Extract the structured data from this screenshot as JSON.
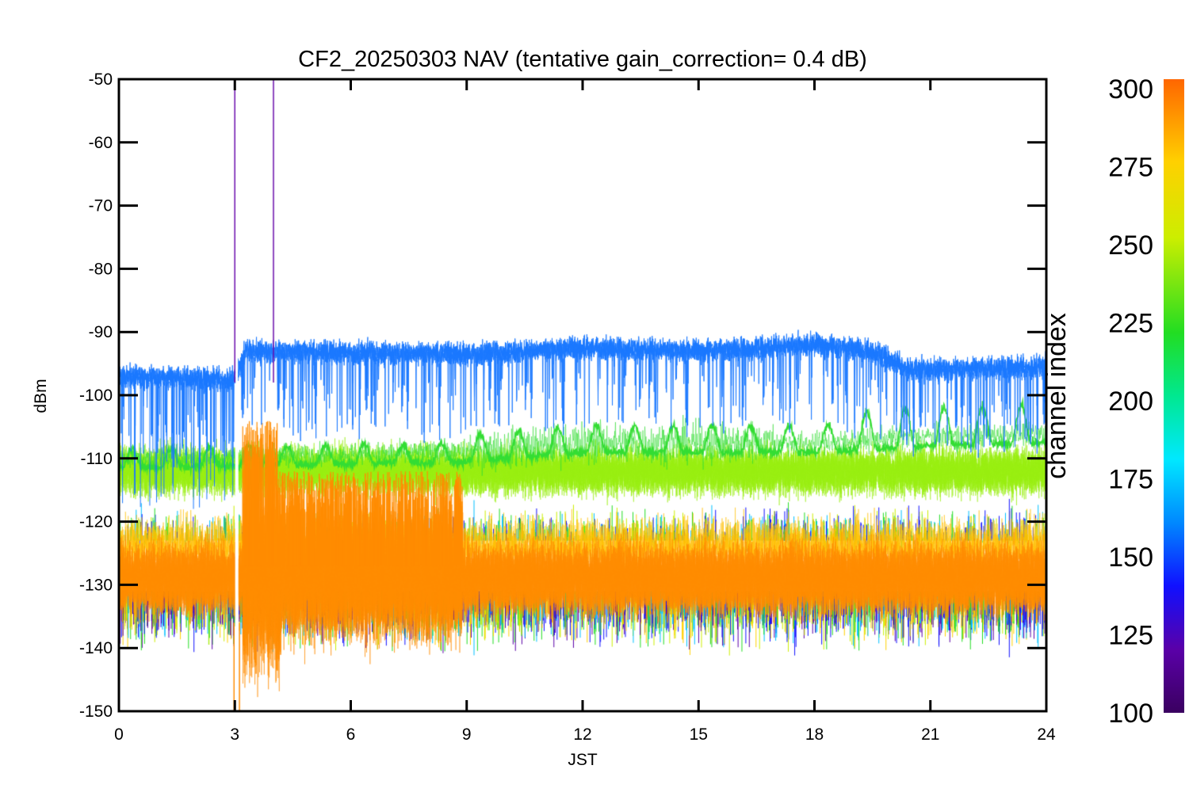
{
  "chart_data": {
    "type": "line",
    "title": "CF2_20250303 NAV (tentative gain_correction=  0.4 dB)",
    "xlabel": "JST",
    "ylabel": "dBm",
    "xlim": [
      0,
      24
    ],
    "ylim": [
      -150,
      -50
    ],
    "xticks": [
      "0",
      "3",
      "6",
      "9",
      "12",
      "15",
      "18",
      "21",
      "24"
    ],
    "yticks": [
      "-50",
      "-60",
      "-70",
      "-80",
      "-90",
      "-100",
      "-110",
      "-120",
      "-130",
      "-140",
      "-150"
    ],
    "grid": false,
    "colorbar": {
      "label": "channel index",
      "range": [
        100,
        300
      ],
      "ticks": [
        "100",
        "125",
        "150",
        "175",
        "200",
        "225",
        "250",
        "275",
        "300"
      ]
    },
    "series_bands": [
      {
        "channel": 155,
        "color": "#1a78ff",
        "approx_level": [
          [
            0,
            -97
          ],
          [
            3,
            -97.5
          ],
          [
            3.3,
            -93
          ],
          [
            9,
            -93.5
          ],
          [
            12,
            -92.5
          ],
          [
            15,
            -93
          ],
          [
            18,
            -92
          ],
          [
            19.5,
            -93
          ],
          [
            20.5,
            -96
          ],
          [
            24,
            -95.5
          ]
        ]
      },
      {
        "channel": 230,
        "color": "#33dd33",
        "approx_level": [
          [
            0,
            -110
          ],
          [
            9,
            -109
          ],
          [
            12,
            -107.5
          ],
          [
            18,
            -107.5
          ],
          [
            21,
            -106.5
          ],
          [
            24,
            -106
          ]
        ]
      },
      {
        "channel": 265,
        "color": "#99ee11",
        "approx_level": [
          [
            0,
            -112
          ],
          [
            24,
            -112
          ]
        ]
      },
      {
        "channel": 285,
        "color": "#ff8c00",
        "approx_level": [
          [
            0,
            -129
          ],
          [
            24,
            -129
          ]
        ]
      }
    ],
    "spikes": [
      {
        "x": 3.0,
        "color": "#6a0dad"
      },
      {
        "x": 4.0,
        "color": "#6a0dad"
      }
    ],
    "gap": {
      "x": 3.05
    }
  }
}
